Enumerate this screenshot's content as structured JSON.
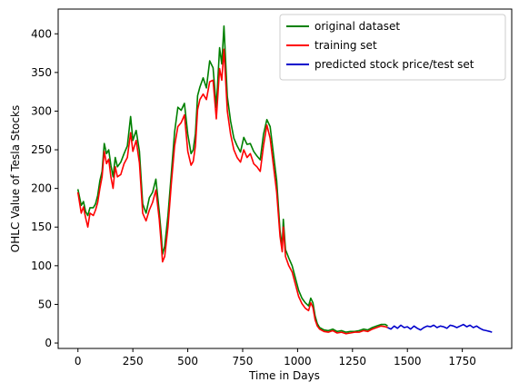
{
  "chart_data": {
    "type": "line",
    "title": "",
    "xlabel": "Time in Days",
    "ylabel": "OHLC Value of Tesla Stocks",
    "xlim": [
      -90,
      1975
    ],
    "ylim": [
      -7,
      432
    ],
    "xticks": [
      0,
      250,
      500,
      750,
      1000,
      1250,
      1500,
      1750
    ],
    "yticks": [
      0,
      50,
      100,
      150,
      200,
      250,
      300,
      350,
      400
    ],
    "grid": false,
    "legend_position": "top-right",
    "series": [
      {
        "name": "original dataset",
        "color": "#008000",
        "x": [
          0,
          15,
          25,
          35,
          45,
          55,
          70,
          80,
          90,
          100,
          110,
          120,
          130,
          140,
          150,
          160,
          170,
          180,
          195,
          210,
          225,
          240,
          250,
          265,
          280,
          295,
          310,
          325,
          340,
          355,
          370,
          380,
          385,
          395,
          410,
          425,
          440,
          455,
          470,
          485,
          500,
          515,
          525,
          535,
          545,
          555,
          570,
          585,
          600,
          615,
          630,
          645,
          655,
          665,
          680,
          695,
          710,
          725,
          740,
          755,
          770,
          785,
          800,
          815,
          830,
          845,
          860,
          875,
          890,
          905,
          920,
          930,
          935,
          945,
          960,
          975,
          990,
          1005,
          1020,
          1035,
          1050,
          1060,
          1070,
          1080,
          1090,
          1100,
          1120,
          1140,
          1160,
          1180,
          1200,
          1220,
          1240,
          1260,
          1280,
          1300,
          1320,
          1340,
          1360,
          1380,
          1400,
          1410
        ],
        "y": [
          199,
          178,
          183,
          170,
          165,
          175,
          175,
          180,
          191,
          210,
          222,
          258,
          245,
          250,
          230,
          215,
          240,
          228,
          234,
          245,
          255,
          293,
          262,
          275,
          248,
          180,
          168,
          188,
          195,
          212,
          170,
          138,
          115,
          125,
          165,
          218,
          273,
          305,
          301,
          310,
          270,
          245,
          250,
          271,
          320,
          331,
          343,
          330,
          365,
          356,
          305,
          382,
          361,
          410,
          319,
          287,
          265,
          255,
          247,
          266,
          257,
          258,
          248,
          242,
          237,
          270,
          289,
          280,
          245,
          210,
          145,
          125,
          160,
          121,
          110,
          100,
          84,
          68,
          58,
          52,
          48,
          58,
          52,
          35,
          25,
          20,
          17,
          16,
          18,
          15,
          16,
          14,
          15,
          15,
          16,
          18,
          17,
          20,
          22,
          24,
          24,
          22
        ]
      },
      {
        "name": "training set",
        "color": "#ff0000",
        "x": [
          0,
          15,
          25,
          35,
          45,
          55,
          70,
          80,
          90,
          100,
          110,
          120,
          130,
          140,
          150,
          160,
          170,
          180,
          195,
          210,
          225,
          240,
          250,
          265,
          280,
          295,
          310,
          325,
          340,
          355,
          370,
          380,
          385,
          395,
          410,
          425,
          440,
          455,
          470,
          485,
          500,
          515,
          525,
          535,
          545,
          555,
          570,
          585,
          600,
          615,
          630,
          645,
          655,
          665,
          680,
          695,
          710,
          725,
          740,
          755,
          770,
          785,
          800,
          815,
          830,
          845,
          860,
          875,
          890,
          905,
          920,
          930,
          935,
          945,
          960,
          975,
          990,
          1005,
          1020,
          1035,
          1050,
          1060,
          1070,
          1080,
          1090,
          1100,
          1120,
          1140,
          1160,
          1180,
          1200,
          1220,
          1240,
          1260,
          1280,
          1300,
          1320,
          1340,
          1360,
          1380,
          1400,
          1410
        ],
        "y": [
          195,
          168,
          176,
          162,
          150,
          168,
          165,
          172,
          182,
          200,
          215,
          248,
          232,
          238,
          215,
          200,
          228,
          215,
          218,
          232,
          240,
          272,
          248,
          262,
          233,
          168,
          158,
          172,
          182,
          198,
          160,
          125,
          105,
          112,
          150,
          205,
          255,
          280,
          285,
          295,
          248,
          230,
          235,
          255,
          302,
          315,
          322,
          315,
          338,
          340,
          290,
          355,
          340,
          380,
          300,
          270,
          250,
          240,
          234,
          250,
          240,
          245,
          232,
          228,
          222,
          255,
          282,
          265,
          230,
          195,
          138,
          118,
          150,
          112,
          100,
          92,
          76,
          60,
          51,
          45,
          42,
          52,
          46,
          30,
          22,
          18,
          15,
          14,
          16,
          13,
          14,
          12,
          13,
          14,
          14,
          16,
          15,
          18,
          20,
          22,
          21,
          20
        ]
      },
      {
        "name": "predicted stock price/test set",
        "color": "#0000cc",
        "x": [
          1410,
          1425,
          1440,
          1455,
          1470,
          1485,
          1500,
          1515,
          1530,
          1545,
          1560,
          1575,
          1590,
          1605,
          1620,
          1635,
          1650,
          1665,
          1680,
          1695,
          1710,
          1725,
          1740,
          1755,
          1770,
          1785,
          1800,
          1815,
          1830,
          1845,
          1860,
          1875,
          1885
        ],
        "y": [
          20,
          18,
          22,
          19,
          23,
          20,
          21,
          18,
          22,
          19,
          17,
          20,
          22,
          21,
          23,
          20,
          22,
          21,
          19,
          23,
          22,
          20,
          22,
          24,
          21,
          23,
          20,
          22,
          19,
          17,
          16,
          15,
          14
        ]
      }
    ]
  }
}
